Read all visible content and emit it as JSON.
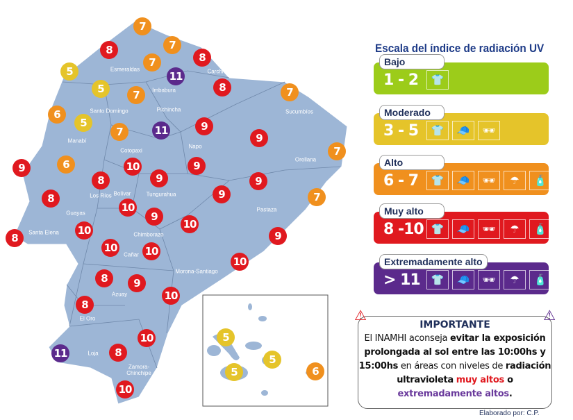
{
  "legend": {
    "title": "Escala del índice de radiación UV",
    "levels": [
      {
        "name": "Bajo",
        "range": "1 - 2",
        "color": "#9ccc1a",
        "icons": [
          "shirt-icon"
        ]
      },
      {
        "name": "Moderado",
        "range": "3 - 5",
        "color": "#e5c42a",
        "icons": [
          "shirt-icon",
          "cap-icon",
          "sunglasses-icon"
        ]
      },
      {
        "name": "Alto",
        "range": "6 - 7",
        "color": "#f0901e",
        "icons": [
          "shirt-icon",
          "cap-icon",
          "sunglasses-icon",
          "umbrella-icon",
          "sunscreen-icon"
        ]
      },
      {
        "name": "Muy alto",
        "range": "8 -10",
        "color": "#e0191f",
        "icons": [
          "shirt-icon",
          "cap-icon",
          "sunglasses-icon",
          "umbrella-icon",
          "sunscreen-icon"
        ]
      },
      {
        "name": "Extremadamente alto",
        "range": "> 11",
        "color": "#5b2a8c",
        "icons": [
          "shirt-icon",
          "cap-icon",
          "sunglasses-icon",
          "umbrella-icon",
          "sunscreen-icon"
        ]
      }
    ]
  },
  "map": {
    "land_color": "#9db6d6",
    "provinces": [
      "Esmeraldas",
      "Carchi",
      "Imbabura",
      "Pichincha",
      "Santo Domingo",
      "Manabí",
      "Sucumbíos",
      "Napo",
      "Orellana",
      "Cotopaxi",
      "Los Ríos",
      "Bolívar",
      "Tungurahua",
      "Pastaza",
      "Guayas",
      "Santa Elena",
      "Chimborazo",
      "Cañar",
      "Morona-Santiago",
      "Azuay",
      "El Oro",
      "Loja",
      "Zamora-Chinchipe"
    ],
    "uv_markers": [
      7,
      8,
      7,
      8,
      5,
      7,
      11,
      8,
      5,
      7,
      7,
      6,
      5,
      7,
      11,
      9,
      9,
      7,
      9,
      6,
      10,
      9,
      9,
      8,
      9,
      9,
      7,
      8,
      10,
      9,
      10,
      10,
      9,
      8,
      10,
      10,
      10,
      8,
      9,
      10,
      8,
      10,
      11,
      8,
      10
    ],
    "galapagos_markers": [
      5,
      5,
      5,
      6
    ]
  },
  "important": {
    "title": "IMPORTANTE",
    "line1_a": "El INAMHI aconseja ",
    "line1_b": "evitar la exposición prolongada al sol entre las 10:00hs y 15:00hs",
    "line2": " en áreas con niveles de ",
    "line3": "radiación ultravioleta",
    "very_high": "muy altos",
    "or": " o ",
    "extreme": "extremadamente altos",
    "end": "."
  },
  "credit": "Elaborado por: C.P."
}
